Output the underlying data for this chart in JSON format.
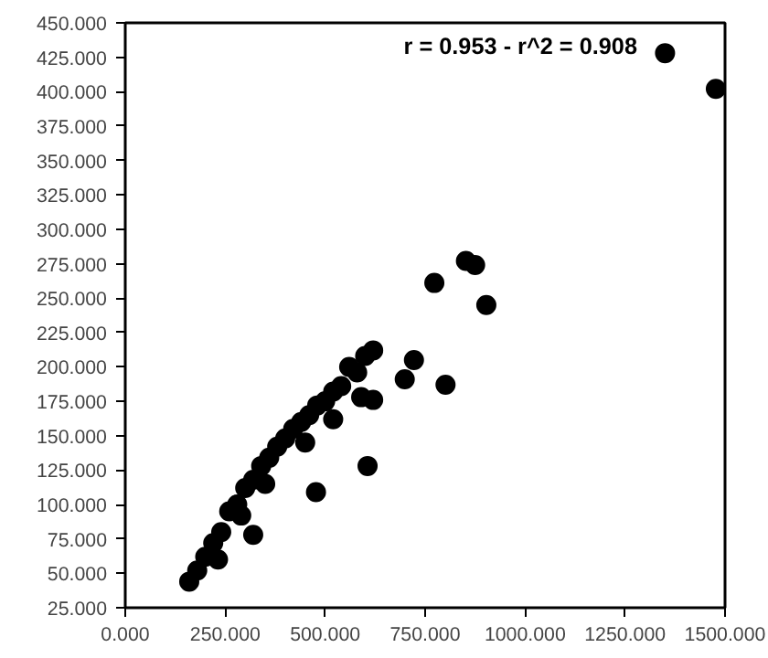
{
  "chart_data": {
    "type": "scatter",
    "marker": "circle",
    "grid": false,
    "annotations": [
      "r = 0.953 - r^2 = 0.908"
    ],
    "xlim": [
      0,
      1500
    ],
    "ylim": [
      25,
      450
    ],
    "xticks": [
      {
        "value": 0,
        "label": "0.000"
      },
      {
        "value": 250,
        "label": "250.000"
      },
      {
        "value": 500,
        "label": "500.000"
      },
      {
        "value": 750,
        "label": "750.000"
      },
      {
        "value": 1000,
        "label": "1000.000"
      },
      {
        "value": 1250,
        "label": "1250.000"
      },
      {
        "value": 1500,
        "label": "1500.000"
      }
    ],
    "yticks": [
      {
        "value": 25,
        "label": "25.000"
      },
      {
        "value": 50,
        "label": "50.000"
      },
      {
        "value": 75,
        "label": "75.000"
      },
      {
        "value": 100,
        "label": "100.000"
      },
      {
        "value": 125,
        "label": "125.000"
      },
      {
        "value": 150,
        "label": "150.000"
      },
      {
        "value": 175,
        "label": "175.000"
      },
      {
        "value": 200,
        "label": "200.000"
      },
      {
        "value": 225,
        "label": "225.000"
      },
      {
        "value": 250,
        "label": "250.000"
      },
      {
        "value": 275,
        "label": "275.000"
      },
      {
        "value": 300,
        "label": "300.000"
      },
      {
        "value": 325,
        "label": "325.000"
      },
      {
        "value": 350,
        "label": "350.000"
      },
      {
        "value": 375,
        "label": "375.000"
      },
      {
        "value": 400,
        "label": "400.000"
      },
      {
        "value": 425,
        "label": "425.000"
      },
      {
        "value": 450,
        "label": "450.000"
      }
    ],
    "series": [
      {
        "color": "#000000",
        "x": [
          160,
          180,
          200,
          220,
          240,
          260,
          280,
          300,
          320,
          340,
          360,
          380,
          400,
          420,
          440,
          460,
          480,
          500,
          520,
          540,
          560,
          580,
          600,
          620,
          232,
          290,
          320,
          350,
          450,
          520,
          590,
          1350,
          1477,
          852,
          875,
          773,
          903,
          801,
          722,
          699,
          620,
          606,
          477
        ],
        "values": [
          44,
          52,
          62,
          72,
          80,
          95,
          100,
          112,
          118,
          128,
          134,
          142,
          148,
          155,
          160,
          165,
          172,
          175,
          182,
          186,
          200,
          196,
          208,
          212,
          60,
          92,
          78,
          115,
          145,
          162,
          178,
          428,
          402,
          277,
          274,
          261,
          245,
          187,
          205,
          191,
          176,
          128,
          109
        ]
      }
    ]
  }
}
